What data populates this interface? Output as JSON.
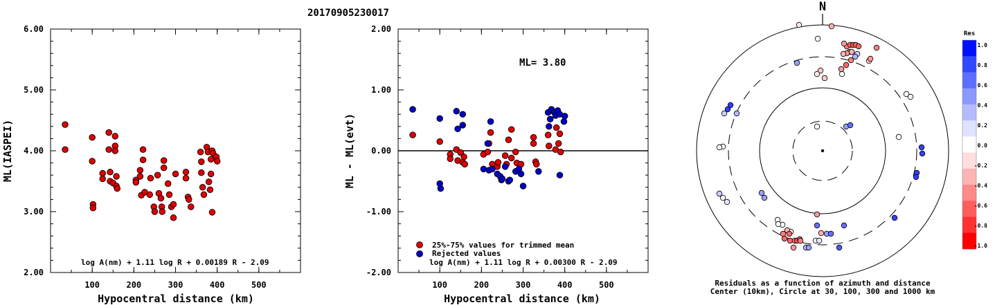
{
  "title": "20170905230017",
  "charts": [
    {
      "type": "scatter",
      "ylabel": "ML(IASPEI)",
      "xlabel": "Hypocentral distance (km)",
      "xlim": [
        0,
        600
      ],
      "ylim": [
        2.0,
        6.0
      ],
      "xticks": [
        "100",
        "200",
        "300",
        "400",
        "500"
      ],
      "yticks": [
        "2.00",
        "3.00",
        "4.00",
        "5.00",
        "6.00"
      ],
      "formula": "log A(nm) + 1.11 log R + 0.00189 R - 2.09",
      "series": [
        {
          "color": "#e00000",
          "points": [
            [
              35,
              4.43
            ],
            [
              35,
              4.02
            ],
            [
              100,
              4.22
            ],
            [
              100,
              3.83
            ],
            [
              102,
              3.12
            ],
            [
              102,
              3.06
            ],
            [
              125,
              3.63
            ],
            [
              125,
              3.54
            ],
            [
              140,
              4.3
            ],
            [
              140,
              4.02
            ],
            [
              143,
              3.65
            ],
            [
              143,
              3.5
            ],
            [
              150,
              3.47
            ],
            [
              155,
              4.24
            ],
            [
              155,
              4.08
            ],
            [
              155,
              4.0
            ],
            [
              158,
              3.58
            ],
            [
              158,
              3.42
            ],
            [
              160,
              3.38
            ],
            [
              205,
              3.52
            ],
            [
              205,
              3.48
            ],
            [
              215,
              3.68
            ],
            [
              215,
              3.58
            ],
            [
              218,
              3.27
            ],
            [
              222,
              4.02
            ],
            [
              222,
              3.85
            ],
            [
              226,
              3.32
            ],
            [
              238,
              3.28
            ],
            [
              240,
              3.55
            ],
            [
              248,
              3.08
            ],
            [
              250,
              3.0
            ],
            [
              257,
              3.6
            ],
            [
              260,
              3.3
            ],
            [
              265,
              3.22
            ],
            [
              267,
              3.08
            ],
            [
              268,
              3.0
            ],
            [
              272,
              3.84
            ],
            [
              272,
              3.72
            ],
            [
              282,
              3.46
            ],
            [
              285,
              3.28
            ],
            [
              290,
              3.08
            ],
            [
              295,
              3.12
            ],
            [
              295,
              2.9
            ],
            [
              300,
              3.62
            ],
            [
              325,
              3.65
            ],
            [
              325,
              3.55
            ],
            [
              330,
              3.24
            ],
            [
              332,
              3.2
            ],
            [
              337,
              3.08
            ],
            [
              360,
              3.98
            ],
            [
              362,
              3.82
            ],
            [
              362,
              3.64
            ],
            [
              365,
              3.4
            ],
            [
              368,
              3.28
            ],
            [
              375,
              4.06
            ],
            [
              378,
              3.98
            ],
            [
              380,
              3.49
            ],
            [
              383,
              3.36
            ],
            [
              385,
              3.86
            ],
            [
              385,
              3.62
            ],
            [
              388,
              4.0
            ],
            [
              390,
              3.96
            ],
            [
              398,
              3.9
            ],
            [
              400,
              3.83
            ],
            [
              388,
              2.99
            ]
          ]
        }
      ]
    },
    {
      "type": "scatter",
      "ylabel": "ML - ML(evt)",
      "xlabel": "Hypocentral distance (km)",
      "xlim": [
        0,
        600
      ],
      "ylim": [
        -2.0,
        2.0
      ],
      "xticks": [
        "100",
        "200",
        "300",
        "400",
        "500"
      ],
      "yticks": [
        "-2.00",
        "-1.00",
        "0.00",
        "1.00",
        "2.00"
      ],
      "annotation": "ML= 3.80",
      "formula": "log A(nm) + 1.11 log R + 0.00300 R - 2.09",
      "legend": [
        "25%-75% values for trimmed mean",
        "Rejected values"
      ],
      "series": [
        {
          "name": "25%-75% values for trimmed mean",
          "color": "#e00000",
          "points": [
            [
              35,
              0.26
            ],
            [
              100,
              0.15
            ],
            [
              125,
              -0.06
            ],
            [
              125,
              -0.13
            ],
            [
              140,
              0.02
            ],
            [
              143,
              -0.16
            ],
            [
              150,
              -0.03
            ],
            [
              155,
              -0.19
            ],
            [
              158,
              -0.1
            ],
            [
              160,
              -0.22
            ],
            [
              205,
              -0.06
            ],
            [
              215,
              -0.02
            ],
            [
              218,
              0.12
            ],
            [
              222,
              0.3
            ],
            [
              226,
              -0.22
            ],
            [
              238,
              -0.26
            ],
            [
              240,
              -0.19
            ],
            [
              257,
              -0.08
            ],
            [
              260,
              -0.22
            ],
            [
              265,
              0.18
            ],
            [
              272,
              0.35
            ],
            [
              272,
              -0.12
            ],
            [
              282,
              -0.02
            ],
            [
              285,
              -0.2
            ],
            [
              295,
              -0.22
            ],
            [
              325,
              0.22
            ],
            [
              325,
              0.12
            ],
            [
              330,
              -0.18
            ],
            [
              332,
              -0.22
            ],
            [
              360,
              0.26
            ],
            [
              362,
              0.08
            ],
            [
              378,
              0.02
            ],
            [
              380,
              0.38
            ],
            [
              385,
              0.12
            ],
            [
              388,
              0.28
            ],
            [
              390,
              -0.02
            ]
          ]
        },
        {
          "name": "Rejected values",
          "color": "#0000c8",
          "points": [
            [
              35,
              0.68
            ],
            [
              100,
              0.53
            ],
            [
              100,
              -0.54
            ],
            [
              102,
              -0.62
            ],
            [
              140,
              0.65
            ],
            [
              143,
              0.36
            ],
            [
              155,
              0.6
            ],
            [
              155,
              0.42
            ],
            [
              205,
              -0.3
            ],
            [
              215,
              0.12
            ],
            [
              218,
              -0.32
            ],
            [
              222,
              0.48
            ],
            [
              226,
              -0.3
            ],
            [
              238,
              -0.38
            ],
            [
              245,
              -0.42
            ],
            [
              248,
              -0.48
            ],
            [
              250,
              -0.46
            ],
            [
              257,
              -0.26
            ],
            [
              265,
              -0.5
            ],
            [
              268,
              -0.48
            ],
            [
              282,
              -0.34
            ],
            [
              290,
              -0.3
            ],
            [
              295,
              -0.38
            ],
            [
              300,
              -0.58
            ],
            [
              337,
              -0.34
            ],
            [
              360,
              0.63
            ],
            [
              362,
              0.4
            ],
            [
              365,
              0.52
            ],
            [
              368,
              0.68
            ],
            [
              375,
              0.63
            ],
            [
              378,
              0.58
            ],
            [
              383,
              0.66
            ],
            [
              388,
              0.6
            ],
            [
              388,
              -0.4
            ],
            [
              398,
              0.48
            ],
            [
              400,
              0.57
            ]
          ]
        }
      ]
    }
  ],
  "polar": {
    "north_label": "N",
    "caption1": "Residuals as a function of azimuth and distance",
    "caption2": "Center (10km), Circle at 30, 100, 300 and 1000 km",
    "colorbar_title": "Res",
    "colorbar_ticks": [
      "1.0",
      "0.8",
      "0.6",
      "0.4",
      "0.2",
      "0.0",
      "-0.2",
      "-0.4",
      "-0.6",
      "-0.8",
      "-1.0"
    ],
    "colorbar_colors": [
      "#0010ff",
      "#3048ff",
      "#5c70ff",
      "#8a98ff",
      "#b4bcff",
      "#dfe3ff",
      "#ffffff",
      "#ffdede",
      "#ffb4b4",
      "#ff8a8a",
      "#ff5c5c",
      "#ff3030",
      "#ff0000"
    ],
    "stations": [
      [
        -35,
        -232,
        0.0
      ],
      [
        -1,
        -229,
        0.0
      ],
      [
        -34,
        -182,
        -0.1
      ],
      [
        13,
        -180,
        -0.3
      ],
      [
        3,
        -105,
        -0.2
      ],
      [
        28,
        -111,
        0.0
      ],
      [
        -3,
        -116,
        -0.2
      ],
      [
        -8,
        -111,
        -0.1
      ],
      [
        -37,
        -127,
        0.4
      ],
      [
        -7,
        -162,
        0.0
      ],
      [
        35,
        -151,
        -0.5
      ],
      [
        40,
        -153,
        -0.6
      ],
      [
        44,
        -153,
        -0.7
      ],
      [
        48,
        -153,
        -0.6
      ],
      [
        52,
        -151,
        -0.6
      ],
      [
        31,
        -155,
        -0.4
      ],
      [
        39,
        -143,
        -0.5
      ],
      [
        35,
        -141,
        -0.4
      ],
      [
        30,
        -140,
        -0.3
      ],
      [
        42,
        -143,
        -0.3
      ],
      [
        50,
        -140,
        0.2
      ],
      [
        47,
        -136,
        0.3
      ],
      [
        41,
        -131,
        -0.5
      ],
      [
        34,
        -124,
        -0.6
      ],
      [
        27,
        -118,
        -0.4
      ],
      [
        67,
        -130,
        -0.2
      ],
      [
        69,
        -133,
        -0.4
      ],
      [
        78,
        -149,
        -0.5
      ],
      [
        -137,
        -60,
        0.8
      ],
      [
        -133,
        -66,
        0.8
      ],
      [
        -124,
        -54,
        0.3
      ],
      [
        -142,
        -54,
        0.2
      ],
      [
        -149,
        62,
        0.2
      ],
      [
        -144,
        68,
        0.0
      ],
      [
        -138,
        74,
        0.1
      ],
      [
        -88,
        61,
        0.4
      ],
      [
        -84,
        68,
        0.4
      ],
      [
        -65,
        100,
        0.0
      ],
      [
        -58,
        107,
        0.0
      ],
      [
        -46,
        117,
        0.0
      ],
      [
        -64,
        106,
        0.0
      ],
      [
        -51,
        115,
        -0.3
      ],
      [
        -57,
        120,
        -0.5
      ],
      [
        -48,
        120,
        -0.6
      ],
      [
        -2,
        119,
        -0.3
      ],
      [
        -8,
        108,
        0.6
      ],
      [
        -8,
        92,
        -0.4
      ],
      [
        6,
        120,
        0.4
      ],
      [
        12,
        120,
        0.6
      ],
      [
        24,
        140,
        0.7
      ],
      [
        -55,
        127,
        -0.6
      ],
      [
        -47,
        130,
        -0.6
      ],
      [
        -40,
        130,
        -0.5
      ],
      [
        -37,
        130,
        -0.7
      ],
      [
        -33,
        128,
        -0.6
      ],
      [
        -32,
        130,
        -0.5
      ],
      [
        -24,
        140,
        0.3
      ],
      [
        -20,
        140,
        0.4
      ],
      [
        -42,
        140,
        -0.4
      ],
      [
        -10,
        130,
        0.0
      ],
      [
        -5,
        130,
        0.1
      ],
      [
        31,
        108,
        0.6
      ],
      [
        -8,
        -35,
        0.0
      ],
      [
        34,
        -35,
        0.4
      ],
      [
        40,
        -37,
        0.6
      ],
      [
        110,
        -20,
        0.0
      ],
      [
        -144,
        -6,
        0.0
      ],
      [
        -149,
        -5,
        0.0
      ],
      [
        143,
        -5,
        0.8
      ],
      [
        144,
        4,
        0.8
      ],
      [
        136,
        32,
        0.8
      ],
      [
        135,
        38,
        0.8
      ],
      [
        104,
        97,
        0.8
      ],
      [
        121,
        -82,
        0.0
      ],
      [
        127,
        -78,
        0.0
      ]
    ]
  }
}
